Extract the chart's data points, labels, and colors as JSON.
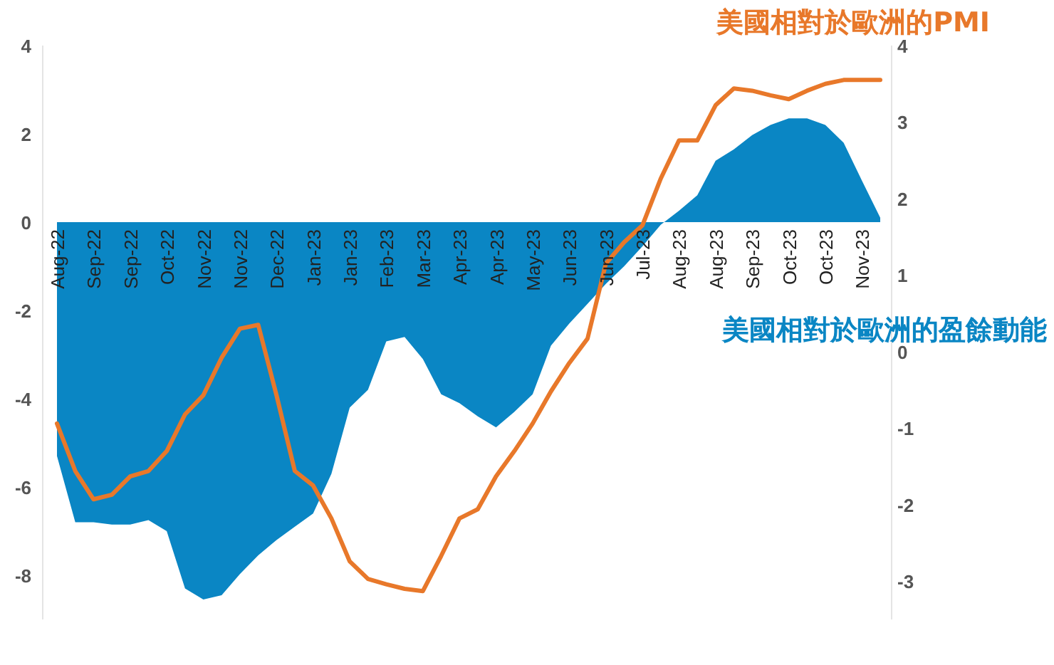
{
  "chart_data": {
    "type": "area",
    "categories": [
      "Aug-22",
      null,
      "Sep-22",
      null,
      "Sep-22",
      null,
      "Oct-22",
      null,
      "Nov-22",
      null,
      "Nov-22",
      null,
      "Dec-22",
      null,
      "Jan-23",
      null,
      "Jan-23",
      null,
      "Feb-23",
      null,
      "Mar-23",
      null,
      "Apr-23",
      null,
      "Apr-23",
      null,
      "May-23",
      null,
      "Jun-23",
      null,
      "Jun-23",
      null,
      "Jul-23",
      null,
      "Aug-23",
      null,
      "Aug-23",
      null,
      "Sep-23",
      null,
      "Oct-23",
      null,
      "Oct-23",
      null,
      "Nov-23",
      null
    ],
    "series": [
      {
        "name": "美國相對於歐洲的盈餘動能",
        "color": "#0a86c4",
        "values": [
          -5.3,
          -6.8,
          -6.8,
          -6.85,
          -6.85,
          -6.75,
          -7.0,
          -8.3,
          -8.55,
          -8.45,
          -7.97,
          -7.55,
          -7.2,
          -6.9,
          -6.6,
          -5.7,
          -4.2,
          -3.8,
          -2.7,
          -2.6,
          -3.1,
          -3.9,
          -4.1,
          -4.4,
          -4.65,
          -4.3,
          -3.9,
          -2.8,
          -2.3,
          -1.85,
          -1.4,
          -1.0,
          -0.55,
          -0.06,
          0.26,
          0.61,
          1.39,
          1.65,
          1.97,
          2.2,
          2.35,
          2.35,
          2.2,
          1.8,
          0.94,
          0.1
        ]
      },
      {
        "name": "美國相對於歐洲的PMI",
        "type": "line",
        "axis": "y2",
        "color": "#e8782a",
        "values": [
          -0.94,
          -1.56,
          -1.93,
          -1.87,
          -1.63,
          -1.56,
          -1.3,
          -0.82,
          -0.57,
          -0.08,
          0.3,
          0.35,
          -0.57,
          -1.56,
          -1.75,
          -2.18,
          -2.74,
          -2.97,
          -3.04,
          -3.1,
          -3.13,
          -2.67,
          -2.18,
          -2.06,
          -1.63,
          -1.3,
          -0.94,
          -0.52,
          -0.15,
          0.17,
          1.15,
          1.43,
          1.65,
          2.26,
          2.76,
          2.76,
          3.22,
          3.44,
          3.41,
          3.35,
          3.3,
          3.41,
          3.5,
          3.55,
          3.55,
          3.55
        ]
      }
    ],
    "ylim": [
      -9,
      4
    ],
    "yticks": [
      4,
      2,
      0,
      -2,
      -4,
      -6,
      -8
    ],
    "y2lim": [
      -3.5,
      4
    ],
    "y2ticks": [
      4,
      3,
      2,
      1,
      0,
      -1,
      -2,
      -3
    ],
    "grid": false,
    "legend": false
  }
}
